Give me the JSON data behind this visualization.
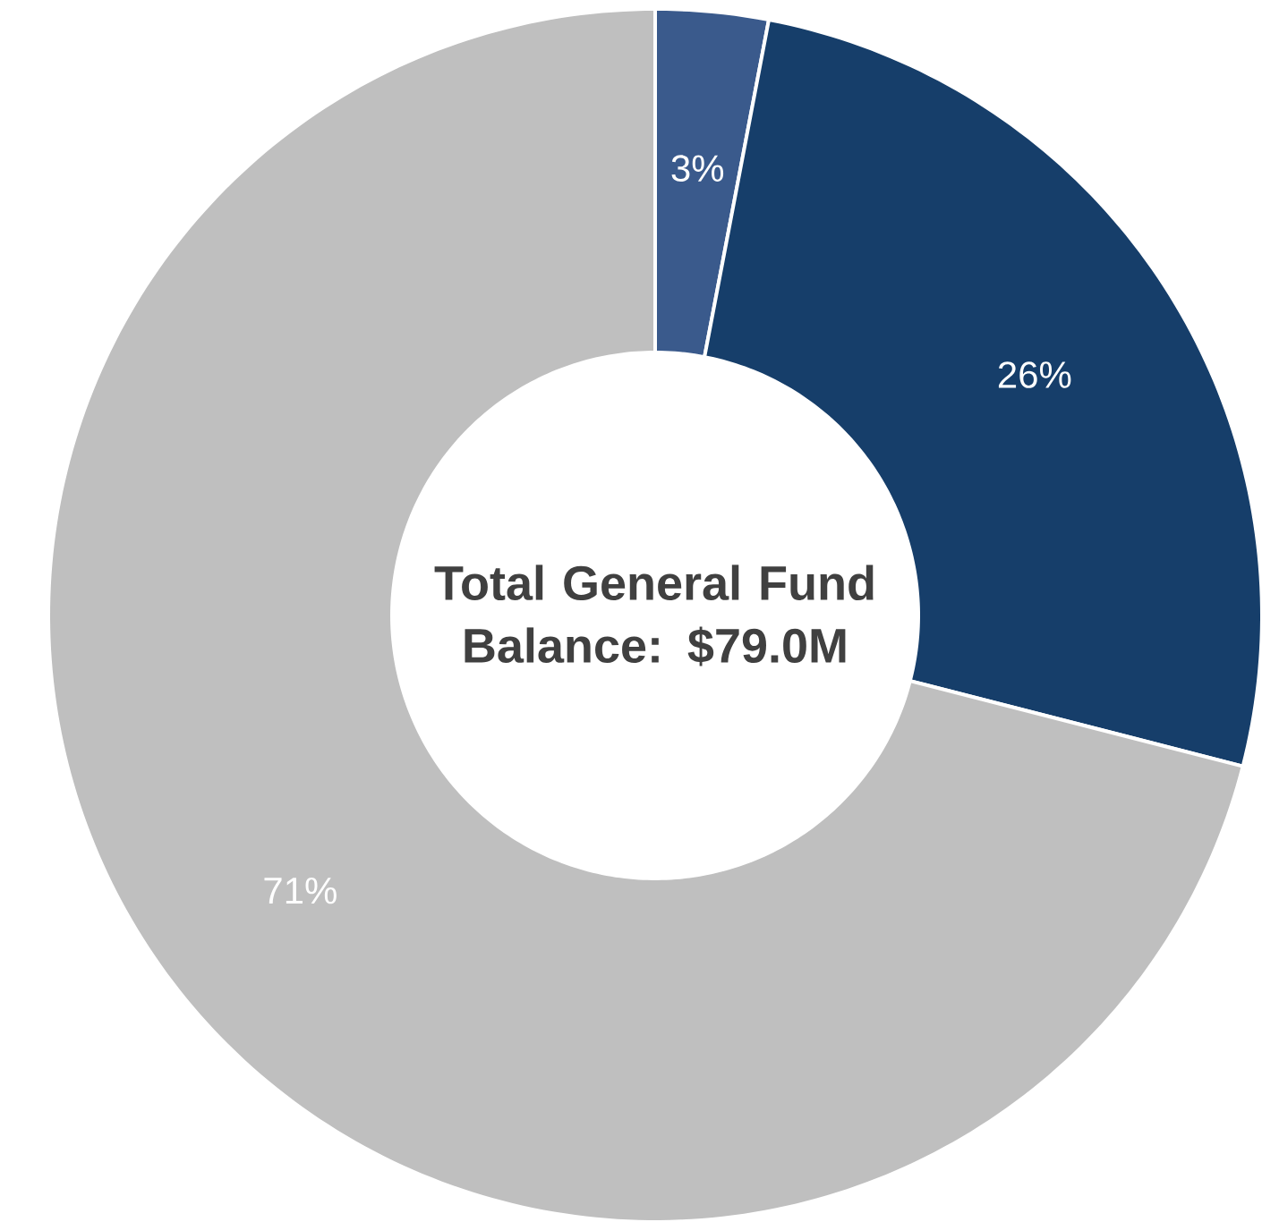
{
  "chart_data": {
    "type": "donut",
    "title": "Total General Fund Balance: $79.0M",
    "categories": [
      null,
      null,
      null
    ],
    "values": [
      3,
      26,
      71
    ],
    "value_labels": [
      "3%",
      "26%",
      "71%"
    ],
    "colors": [
      "#3a5a8c",
      "#163e6a",
      "#bfbfbf"
    ]
  }
}
